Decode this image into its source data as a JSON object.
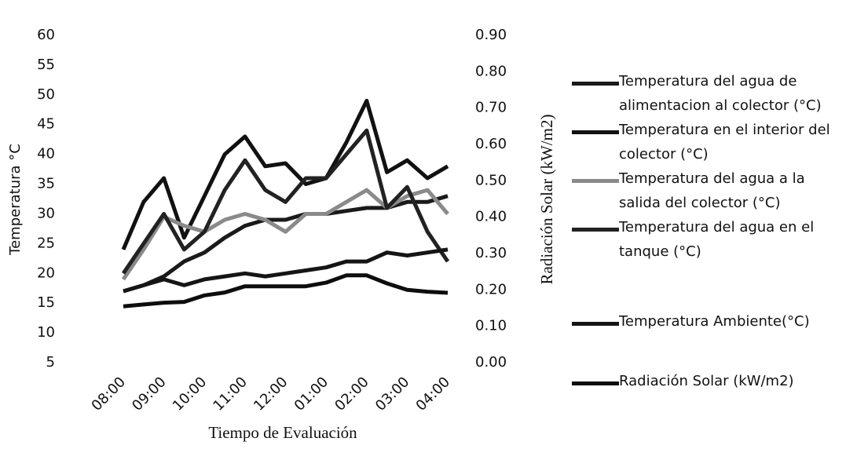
{
  "chart_data": {
    "type": "line",
    "y_label": "Temperatura °C",
    "y2_label": "Radiación Solar (kW/m2)",
    "x_label": "Tiempo de Evaluación",
    "categories": [
      "08:00",
      null,
      "09:00",
      null,
      "10:00",
      null,
      "11:00",
      null,
      "12:00",
      null,
      "01:00",
      null,
      "02:00",
      null,
      "03:00",
      null,
      "04:00"
    ],
    "ylim": [
      5,
      60
    ],
    "yticks": [
      5,
      10,
      15,
      20,
      25,
      30,
      35,
      40,
      45,
      50,
      55,
      60
    ],
    "y2lim": [
      0,
      0.9
    ],
    "y2ticks": [
      {
        "value": 0,
        "label": "0.00"
      },
      {
        "value": 0.1,
        "label": "0.10"
      },
      {
        "value": 0.2,
        "label": "0.20"
      },
      {
        "value": 0.3,
        "label": "0.30"
      },
      {
        "value": 0.4,
        "label": "0.40"
      },
      {
        "value": 0.5,
        "label": "0.50"
      },
      {
        "value": 0.6,
        "label": "0.60"
      },
      {
        "value": 0.7,
        "label": "0.70"
      },
      {
        "value": 0.8,
        "label": "0.80"
      },
      {
        "value": 0.9,
        "label": "0.90"
      }
    ],
    "series": [
      {
        "name": "Temperatura del agua de alimentacion al colector (°C)",
        "color": "#1a1a1a",
        "values": [
          17,
          18,
          19.5,
          22,
          23.5,
          26,
          28,
          29,
          29,
          30,
          30,
          30.5,
          31,
          31,
          32,
          32,
          33
        ]
      },
      {
        "name": "Temperatura en el interior del colector (°C)",
        "color": "#111111",
        "values": [
          24,
          32,
          36,
          26,
          33,
          40,
          43,
          38,
          38.5,
          35,
          36,
          42,
          49,
          37,
          39,
          36,
          38
        ]
      },
      {
        "name": "Temperatura del agua a la salida del colector (°C)",
        "color": "#8a8a8a",
        "values": [
          19,
          24,
          29.5,
          28,
          27,
          29,
          30,
          29,
          27,
          30,
          30,
          32,
          34,
          31,
          33,
          34,
          30
        ]
      },
      {
        "name": "Temperatura del agua en el tanque (°C)",
        "color": "#222222",
        "values": [
          20,
          25,
          30,
          24,
          27,
          34,
          39,
          34,
          32,
          36,
          36,
          40,
          44,
          31,
          34.5,
          27,
          22
        ]
      },
      {
        "name": "Temperatura Ambiente(°C)",
        "color": "#151515",
        "values": [
          17,
          18,
          19,
          18,
          19,
          19.5,
          20,
          19.5,
          20,
          20.5,
          21,
          22,
          22,
          23.5,
          23,
          23.5,
          24
        ]
      },
      {
        "name": "Radiación Solar (kW/m2)",
        "color": "#0d0d0d",
        "axis": "y2",
        "values": [
          0.155,
          0.16,
          0.165,
          0.167,
          0.185,
          0.193,
          0.21,
          0.21,
          0.21,
          0.21,
          0.22,
          0.24,
          0.24,
          0.218,
          0.2,
          0.195,
          0.192
        ]
      }
    ]
  }
}
